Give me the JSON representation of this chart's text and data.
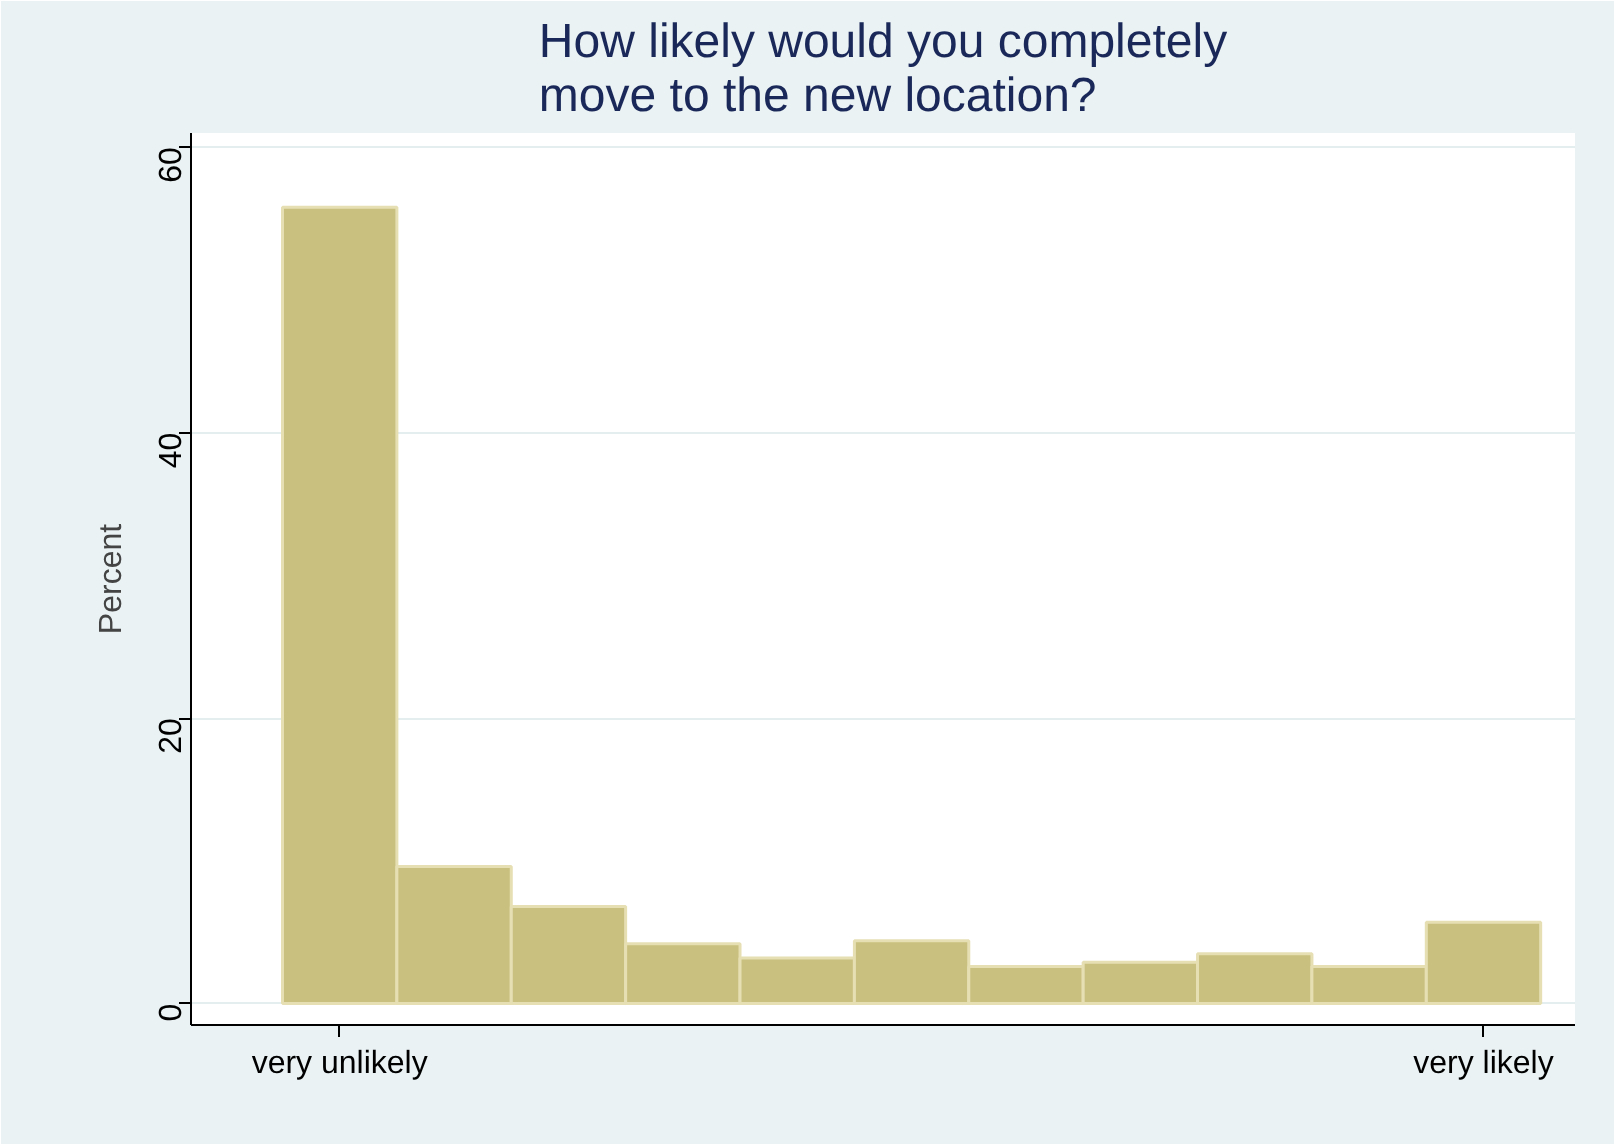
{
  "chart_data": {
    "type": "bar",
    "title": "How likely would you completely\nmove to the new location?",
    "ylabel": "Percent",
    "categories": [
      "very unlikely",
      null,
      null,
      null,
      null,
      null,
      null,
      null,
      null,
      null,
      "very likely"
    ],
    "values": [
      55.8,
      9.6,
      6.8,
      4.2,
      3.2,
      4.4,
      2.6,
      2.9,
      3.5,
      2.6,
      5.7
    ],
    "color": "#c9bf7e",
    "ylim": [
      -1.5,
      61
    ],
    "yticks": [
      0,
      20,
      40,
      60
    ],
    "grid": "y"
  }
}
